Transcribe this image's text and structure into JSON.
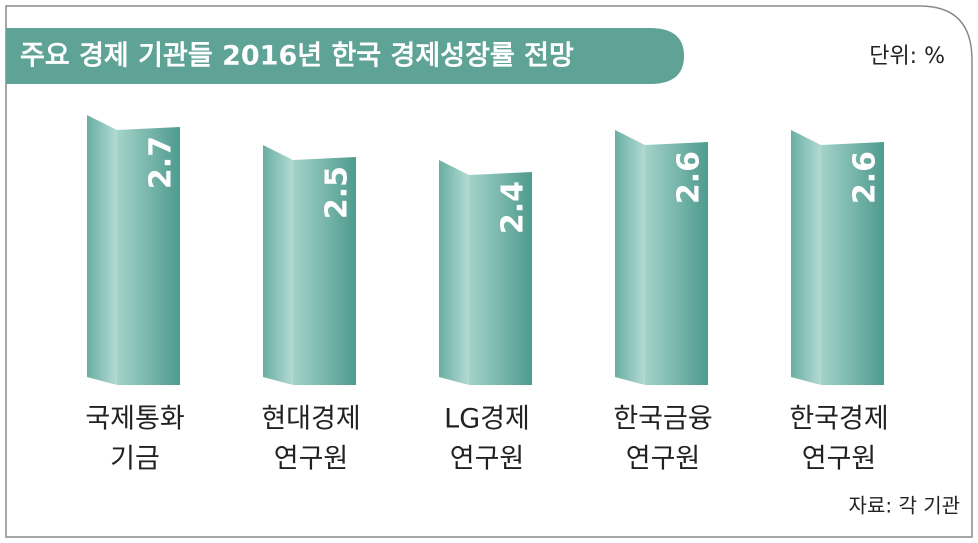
{
  "chart_data": {
    "type": "bar3d",
    "title": "주요 경제 기관들 2016년 한국 경제성장률 전망",
    "unit_note": "단위: %",
    "source": "자료: 각 기관",
    "categories": [
      [
        "국제통화",
        "기금"
      ],
      [
        "현대경제",
        "연구원"
      ],
      [
        "LG경제",
        "연구원"
      ],
      [
        "한국금융",
        "연구원"
      ],
      [
        "한국경제",
        "연구원"
      ]
    ],
    "values": [
      2.7,
      2.5,
      2.4,
      2.6,
      2.6
    ],
    "ylim": [
      1,
      2.8
    ],
    "color": "#5fa397"
  }
}
